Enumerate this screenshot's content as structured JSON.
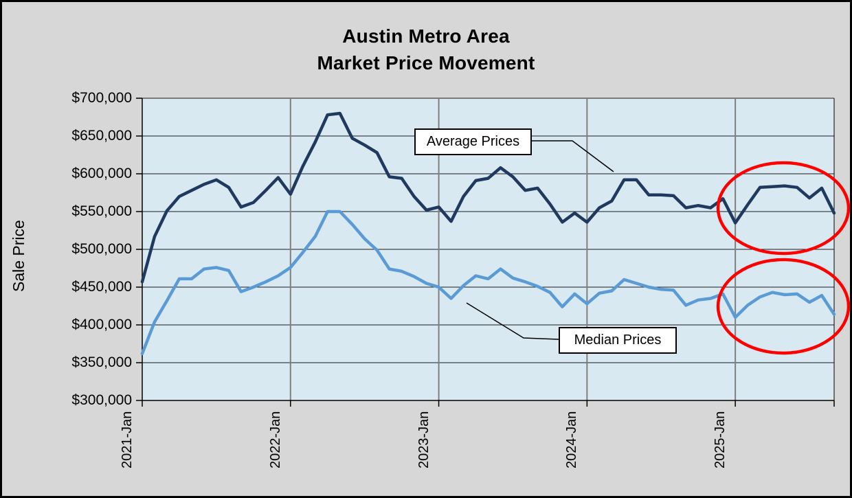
{
  "title": {
    "line1": "Austin Metro Area",
    "line2": "Market Price Movement"
  },
  "y_axis": {
    "title": "Sale Price",
    "tick_labels": [
      "$700,000",
      "$650,000",
      "$600,000",
      "$550,000",
      "$500,000",
      "$450,000",
      "$400,000",
      "$350,000",
      "$300,000"
    ]
  },
  "x_axis": {
    "tick_labels": [
      "2021-Jan",
      "2022-Jan",
      "2023-Jan",
      "2024-Jan",
      "2025-Jan"
    ]
  },
  "annotations": {
    "average_label": "Average Prices",
    "median_label": "Median Prices"
  },
  "colors": {
    "page_bg": "#D7D7D7",
    "plot_bg": "#D8E9F1",
    "average_line": "#20395F",
    "median_line": "#5B9BD5",
    "highlight": "#FF0000",
    "gridline": "#1A1A1A",
    "year_gridline": "#7F7F7F"
  },
  "chart_data": {
    "type": "line",
    "title": "Austin Metro Area Market Price Movement",
    "ylabel": "Sale Price",
    "ylim": [
      300000,
      700000
    ],
    "ytick_step": 50000,
    "grid": true,
    "legend": "inline-callouts",
    "x": [
      "2021-Jan",
      "2021-Feb",
      "2021-Mar",
      "2021-Apr",
      "2021-May",
      "2021-Jun",
      "2021-Jul",
      "2021-Aug",
      "2021-Sep",
      "2021-Oct",
      "2021-Nov",
      "2021-Dec",
      "2022-Jan",
      "2022-Feb",
      "2022-Mar",
      "2022-Apr",
      "2022-May",
      "2022-Jun",
      "2022-Jul",
      "2022-Aug",
      "2022-Sep",
      "2022-Oct",
      "2022-Nov",
      "2022-Dec",
      "2023-Jan",
      "2023-Feb",
      "2023-Mar",
      "2023-Apr",
      "2023-May",
      "2023-Jun",
      "2023-Jul",
      "2023-Aug",
      "2023-Sep",
      "2023-Oct",
      "2023-Nov",
      "2023-Dec",
      "2024-Jan",
      "2024-Feb",
      "2024-Mar",
      "2024-Apr",
      "2024-May",
      "2024-Jun",
      "2024-Jul",
      "2024-Aug",
      "2024-Sep",
      "2024-Oct",
      "2024-Nov",
      "2024-Dec",
      "2025-Jan",
      "2025-Feb",
      "2025-Mar",
      "2025-Apr",
      "2025-May",
      "2025-Jun",
      "2025-Jul",
      "2025-Aug",
      "2025-Sep"
    ],
    "xticks": [
      "2021-Jan",
      "2022-Jan",
      "2023-Jan",
      "2024-Jan",
      "2025-Jan"
    ],
    "series": [
      {
        "name": "Average Prices",
        "color": "#20395F",
        "values": [
          457000,
          517000,
          551000,
          570000,
          578000,
          586000,
          592000,
          582000,
          556000,
          562000,
          578000,
          595000,
          573000,
          610000,
          642000,
          678000,
          680000,
          647000,
          638000,
          628000,
          596000,
          594000,
          570000,
          552000,
          556000,
          537000,
          570000,
          591000,
          594000,
          608000,
          596000,
          578000,
          581000,
          560000,
          536000,
          548000,
          536000,
          555000,
          564000,
          592000,
          592000,
          572000,
          572000,
          571000,
          555000,
          558000,
          555000,
          567000,
          535000,
          559000,
          582000,
          583000,
          584000,
          582000,
          568000,
          581000,
          548000
        ]
      },
      {
        "name": "Median Prices",
        "color": "#5B9BD5",
        "values": [
          362000,
          404000,
          432000,
          461000,
          461000,
          474000,
          476000,
          472000,
          444000,
          450000,
          457000,
          465000,
          476000,
          496000,
          517000,
          550000,
          550000,
          533000,
          514000,
          499000,
          474000,
          471000,
          464000,
          455000,
          450000,
          435000,
          452000,
          465000,
          461000,
          474000,
          462000,
          457000,
          451000,
          443000,
          424000,
          441000,
          428000,
          442000,
          445000,
          460000,
          455000,
          450000,
          447000,
          446000,
          426000,
          433000,
          435000,
          441000,
          410000,
          426000,
          437000,
          443000,
          440000,
          441000,
          430000,
          439000,
          414000
        ]
      }
    ],
    "highlights": [
      {
        "shape": "ellipse",
        "color": "#FF0000",
        "around": "2025 Average Prices data"
      },
      {
        "shape": "ellipse",
        "color": "#FF0000",
        "around": "2025 Median Prices data"
      }
    ]
  }
}
